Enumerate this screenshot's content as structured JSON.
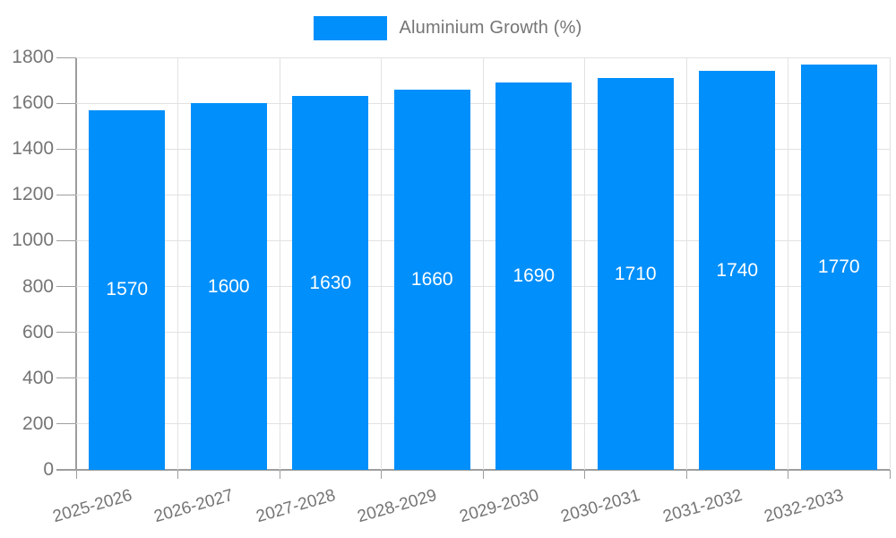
{
  "legend": {
    "label": "Aluminium Growth (%)",
    "swatch_color": "#008FFB"
  },
  "chart_data": {
    "type": "bar",
    "title": "",
    "xlabel": "",
    "ylabel": "",
    "categories": [
      "2025-2026",
      "2026-2027",
      "2027-2028",
      "2028-2029",
      "2029-2030",
      "2030-2031",
      "2031-2032",
      "2032-2033"
    ],
    "series": [
      {
        "name": "Aluminium Growth (%)",
        "values": [
          1570,
          1600,
          1630,
          1660,
          1690,
          1710,
          1740,
          1770
        ]
      }
    ],
    "value_labels": [
      1570,
      1600,
      1630,
      1660,
      1690,
      1710,
      1740,
      1770
    ],
    "value_label_position": "inside-center",
    "ylim": [
      0,
      1800
    ],
    "yticks": [
      0,
      200,
      400,
      600,
      800,
      1000,
      1200,
      1400,
      1600,
      1800
    ],
    "grid": true,
    "legend_position": "top",
    "xlabel_rotation_deg": -16
  },
  "colors": {
    "bar": "#008FFB",
    "grid": "#e2e2e2",
    "axis": "#9e9e9e",
    "text": "#757575",
    "bar_label": "#ffffff",
    "background": "#ffffff"
  }
}
